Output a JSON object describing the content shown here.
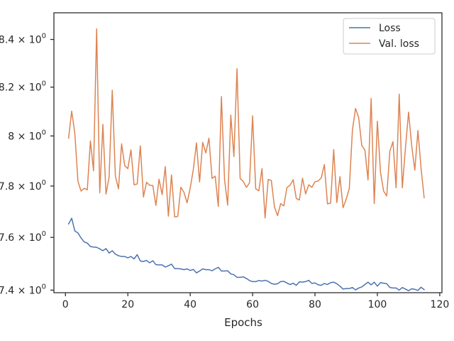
{
  "chart_data": {
    "type": "line",
    "xlabel": "Epochs",
    "ylabel": "",
    "y_scale": "log",
    "xlim": [
      -3.7,
      120.7
    ],
    "ylim": [
      7.3905,
      8.514
    ],
    "x_ticks": [
      0,
      20,
      40,
      60,
      80,
      100,
      120
    ],
    "x_tick_labels": [
      "0",
      "20",
      "40",
      "60",
      "80",
      "100",
      "120"
    ],
    "y_ticks": [
      7.4,
      7.6,
      7.8,
      8.0,
      8.2,
      8.4
    ],
    "y_tick_labels": [
      {
        "base": "7.4 × 10",
        "exp": "0"
      },
      {
        "base": "7.6 × 10",
        "exp": "0"
      },
      {
        "base": "7.8 × 10",
        "exp": "0"
      },
      {
        "base": "8 × 10",
        "exp": "0"
      },
      {
        "base": "8.2 × 10",
        "exp": "0"
      },
      {
        "base": "8.4 × 10",
        "exp": "0"
      }
    ],
    "grid": false,
    "legend": {
      "position": "top-right"
    },
    "series": [
      {
        "name": "Loss",
        "color": "#4c72b0",
        "x_start": 1,
        "values": [
          7.652,
          7.674,
          7.625,
          7.617,
          7.598,
          7.583,
          7.578,
          7.565,
          7.563,
          7.562,
          7.556,
          7.549,
          7.557,
          7.54,
          7.549,
          7.536,
          7.53,
          7.527,
          7.527,
          7.522,
          7.527,
          7.518,
          7.534,
          7.51,
          7.508,
          7.512,
          7.503,
          7.511,
          7.496,
          7.495,
          7.495,
          7.487,
          7.492,
          7.498,
          7.481,
          7.481,
          7.48,
          7.477,
          7.48,
          7.474,
          7.478,
          7.465,
          7.472,
          7.48,
          7.477,
          7.477,
          7.473,
          7.48,
          7.486,
          7.472,
          7.472,
          7.473,
          7.461,
          7.458,
          7.448,
          7.448,
          7.45,
          7.444,
          7.436,
          7.432,
          7.432,
          7.436,
          7.434,
          7.437,
          7.433,
          7.425,
          7.422,
          7.424,
          7.432,
          7.433,
          7.427,
          7.421,
          7.426,
          7.418,
          7.431,
          7.43,
          7.432,
          7.437,
          7.425,
          7.427,
          7.42,
          7.418,
          7.425,
          7.421,
          7.428,
          7.43,
          7.424,
          7.415,
          7.404,
          7.406,
          7.406,
          7.41,
          7.401,
          7.408,
          7.412,
          7.421,
          7.43,
          7.42,
          7.43,
          7.415,
          7.428,
          7.426,
          7.424,
          7.41,
          7.408,
          7.408,
          7.4,
          7.41,
          7.404,
          7.398,
          7.405,
          7.403,
          7.399,
          7.411,
          7.402
        ]
      },
      {
        "name": "Val. loss",
        "color": "#dd8452",
        "x_start": 1,
        "values": [
          7.991,
          8.101,
          8.011,
          7.819,
          7.78,
          7.791,
          7.785,
          7.98,
          7.86,
          8.445,
          7.773,
          8.047,
          7.768,
          7.836,
          8.187,
          7.84,
          7.789,
          7.968,
          7.881,
          7.869,
          7.944,
          7.805,
          7.808,
          7.96,
          7.757,
          7.815,
          7.803,
          7.802,
          7.724,
          7.827,
          7.766,
          7.877,
          7.682,
          7.844,
          7.679,
          7.681,
          7.795,
          7.775,
          7.734,
          7.792,
          7.866,
          7.972,
          7.816,
          7.974,
          7.932,
          7.991,
          7.83,
          7.839,
          7.72,
          8.161,
          7.826,
          7.725,
          8.085,
          7.917,
          8.277,
          7.83,
          7.818,
          7.795,
          7.812,
          8.082,
          7.789,
          7.781,
          7.869,
          7.675,
          7.826,
          7.822,
          7.718,
          7.684,
          7.731,
          7.722,
          7.794,
          7.803,
          7.825,
          7.751,
          7.745,
          7.831,
          7.769,
          7.805,
          7.795,
          7.817,
          7.82,
          7.832,
          7.885,
          7.73,
          7.733,
          7.945,
          7.735,
          7.837,
          7.715,
          7.748,
          7.79,
          8.024,
          8.112,
          8.075,
          7.962,
          7.943,
          7.824,
          8.153,
          7.731,
          8.06,
          7.854,
          7.78,
          7.761,
          7.939,
          7.977,
          7.793,
          8.171,
          7.793,
          7.951,
          8.097,
          7.961,
          7.863,
          8.022,
          7.871,
          7.754
        ]
      }
    ]
  }
}
